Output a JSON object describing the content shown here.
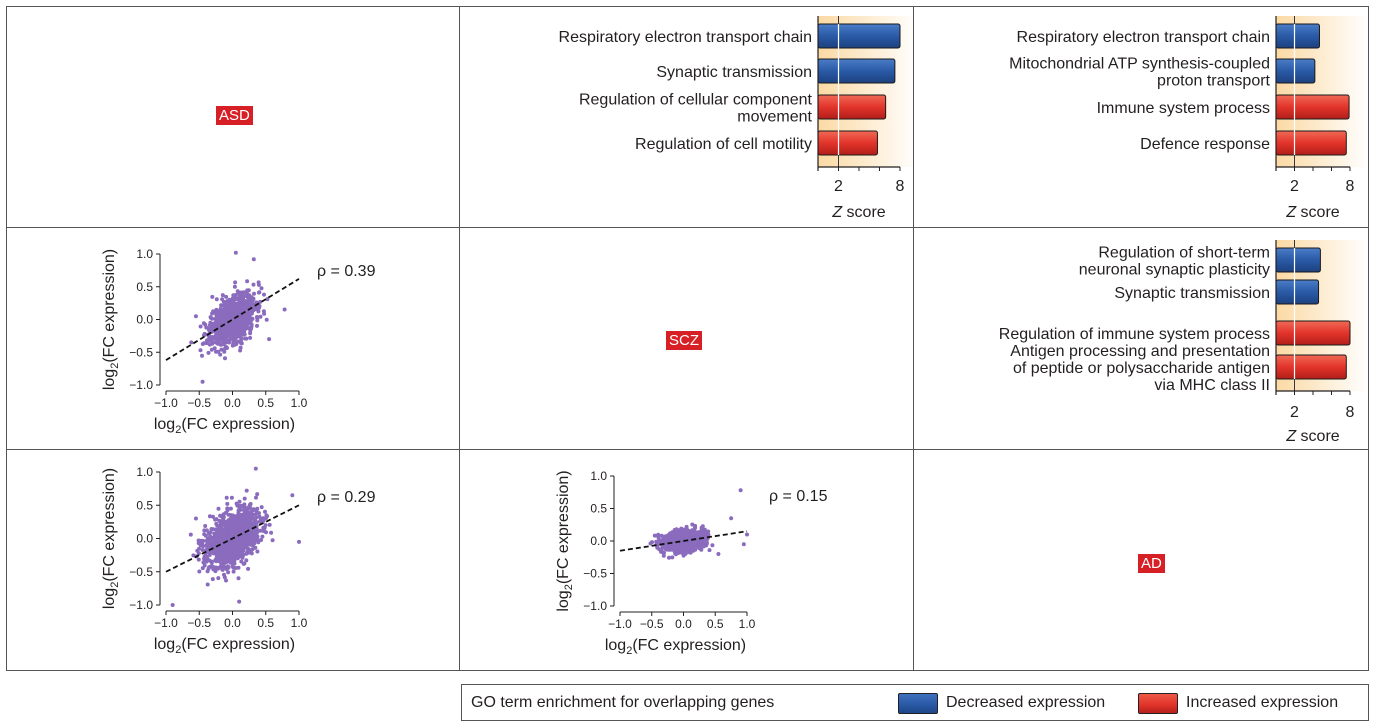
{
  "labels": {
    "asd": "ASD",
    "scz": "SCZ",
    "ad": "AD"
  },
  "legend": {
    "title": "GO term enrichment for overlapping genes",
    "decreased": "Decreased expression",
    "increased": "Increased expression",
    "colors": {
      "decreased": "#2a5aa6",
      "increased": "#e2342b"
    }
  },
  "chart_data": [
    {
      "type": "bar",
      "id": "asd-scz-go",
      "categories": [
        "Respiratory electron transport chain",
        "Synaptic transmission",
        "Regulation of cellular component movement",
        "Regulation of cell motility"
      ],
      "label_lines": [
        [
          "Respiratory electron transport chain"
        ],
        [
          "Synaptic transmission"
        ],
        [
          "Regulation of cellular component",
          "movement"
        ],
        [
          "Regulation of cell motility"
        ]
      ],
      "values": [
        8.0,
        7.5,
        6.6,
        5.8
      ],
      "direction": [
        "decreased",
        "decreased",
        "increased",
        "increased"
      ],
      "xlabel": "Z score",
      "xticks": [
        2,
        8
      ],
      "xlim": [
        0,
        8.5
      ],
      "threshold": 2
    },
    {
      "type": "bar",
      "id": "asd-ad-go",
      "categories": [
        "Respiratory electron transport chain",
        "Mitochondrial ATP synthesis-coupled proton transport",
        "Immune system process",
        "Defence response"
      ],
      "label_lines": [
        [
          "Respiratory electron transport chain"
        ],
        [
          "Mitochondrial ATP synthesis-coupled",
          "proton transport"
        ],
        [
          "Immune system process"
        ],
        [
          "Defence response"
        ]
      ],
      "values": [
        4.7,
        4.2,
        7.9,
        7.6
      ],
      "direction": [
        "decreased",
        "decreased",
        "increased",
        "increased"
      ],
      "xlabel": "Z score",
      "xticks": [
        2,
        8
      ],
      "xlim": [
        0,
        8.5
      ],
      "threshold": 2
    },
    {
      "type": "bar",
      "id": "scz-ad-go",
      "categories": [
        "Regulation of short-term neuronal synaptic plasticity",
        "Synaptic transmission",
        "Regulation of immune system process",
        "Antigen processing and presentation of peptide or polysaccharide antigen via MHC class II"
      ],
      "label_lines": [
        [
          "Regulation of short-term",
          "neuronal synaptic plasticity"
        ],
        [
          "Synaptic transmission"
        ],
        [
          "Regulation of immune system process"
        ],
        [
          "Antigen processing and presentation",
          "of peptide or polysaccharide antigen",
          "via MHC class II"
        ]
      ],
      "values": [
        4.8,
        4.6,
        8.0,
        7.6
      ],
      "direction": [
        "decreased",
        "decreased",
        "increased",
        "increased"
      ],
      "xlabel": "Z score",
      "xticks": [
        2,
        8
      ],
      "xlim": [
        0,
        8.5
      ],
      "threshold": 2
    },
    {
      "type": "scatter",
      "id": "asd-vs-scz",
      "rho_label": "ρ = 0.39",
      "xlabel": "log2(FC expression)",
      "ylabel": "log2(FC expression)",
      "xticks": [
        -1.0,
        -0.5,
        0.0,
        0.5,
        1.0
      ],
      "yticks": [
        -1.0,
        -0.5,
        0.0,
        0.5,
        1.0
      ],
      "xlim": [
        -1.0,
        1.0
      ],
      "ylim": [
        -1.0,
        1.0
      ],
      "fit": {
        "slope": 0.62,
        "intercept": 0.0,
        "x_range": [
          -1.0,
          1.0
        ]
      },
      "cloud": {
        "n": 900,
        "x_sd": 0.17,
        "y_sd": 0.22,
        "slope": 0.55
      },
      "sample_points": [
        [
          -0.62,
          -0.35
        ],
        [
          0.32,
          0.92
        ],
        [
          0.05,
          1.02
        ],
        [
          -0.45,
          -0.95
        ],
        [
          0.55,
          -0.3
        ],
        [
          -0.55,
          0.05
        ]
      ]
    },
    {
      "type": "scatter",
      "id": "asd-vs-ad",
      "rho_label": "ρ = 0.29",
      "xlabel": "log2(FC expression)",
      "ylabel": "log2(FC expression)",
      "xticks": [
        -1.0,
        -0.5,
        0.0,
        0.5,
        1.0
      ],
      "yticks": [
        -1.0,
        -0.5,
        0.0,
        0.5,
        1.0
      ],
      "xlim": [
        -1.0,
        1.0
      ],
      "ylim": [
        -1.0,
        1.0
      ],
      "fit": {
        "slope": 0.5,
        "intercept": 0.0,
        "x_range": [
          -1.0,
          1.0
        ]
      },
      "cloud": {
        "n": 1100,
        "x_sd": 0.2,
        "y_sd": 0.25,
        "slope": 0.4
      },
      "sample_points": [
        [
          -0.9,
          -1.0
        ],
        [
          1.0,
          -0.05
        ],
        [
          0.35,
          1.05
        ],
        [
          0.9,
          0.65
        ],
        [
          -0.55,
          0.3
        ],
        [
          0.1,
          -0.95
        ]
      ]
    },
    {
      "type": "scatter",
      "id": "scz-vs-ad",
      "rho_label": "ρ = 0.15",
      "xlabel": "log2(FC expression)",
      "ylabel": "log2(FC expression)",
      "xticks": [
        -1.0,
        -0.5,
        0.0,
        0.5,
        1.0
      ],
      "yticks": [
        -1.0,
        -0.5,
        0.0,
        0.5,
        1.0
      ],
      "xlim": [
        -1.0,
        1.0
      ],
      "ylim": [
        -1.0,
        1.0
      ],
      "fit": {
        "slope": 0.15,
        "intercept": 0.0,
        "x_range": [
          -1.0,
          1.0
        ]
      },
      "cloud": {
        "n": 900,
        "x_sd": 0.16,
        "y_sd": 0.1,
        "slope": 0.1
      },
      "sample_points": [
        [
          0.9,
          0.78
        ],
        [
          0.75,
          0.35
        ],
        [
          0.55,
          -0.2
        ],
        [
          -0.35,
          -0.15
        ],
        [
          1.0,
          0.1
        ],
        [
          0.95,
          -0.05
        ]
      ]
    }
  ]
}
